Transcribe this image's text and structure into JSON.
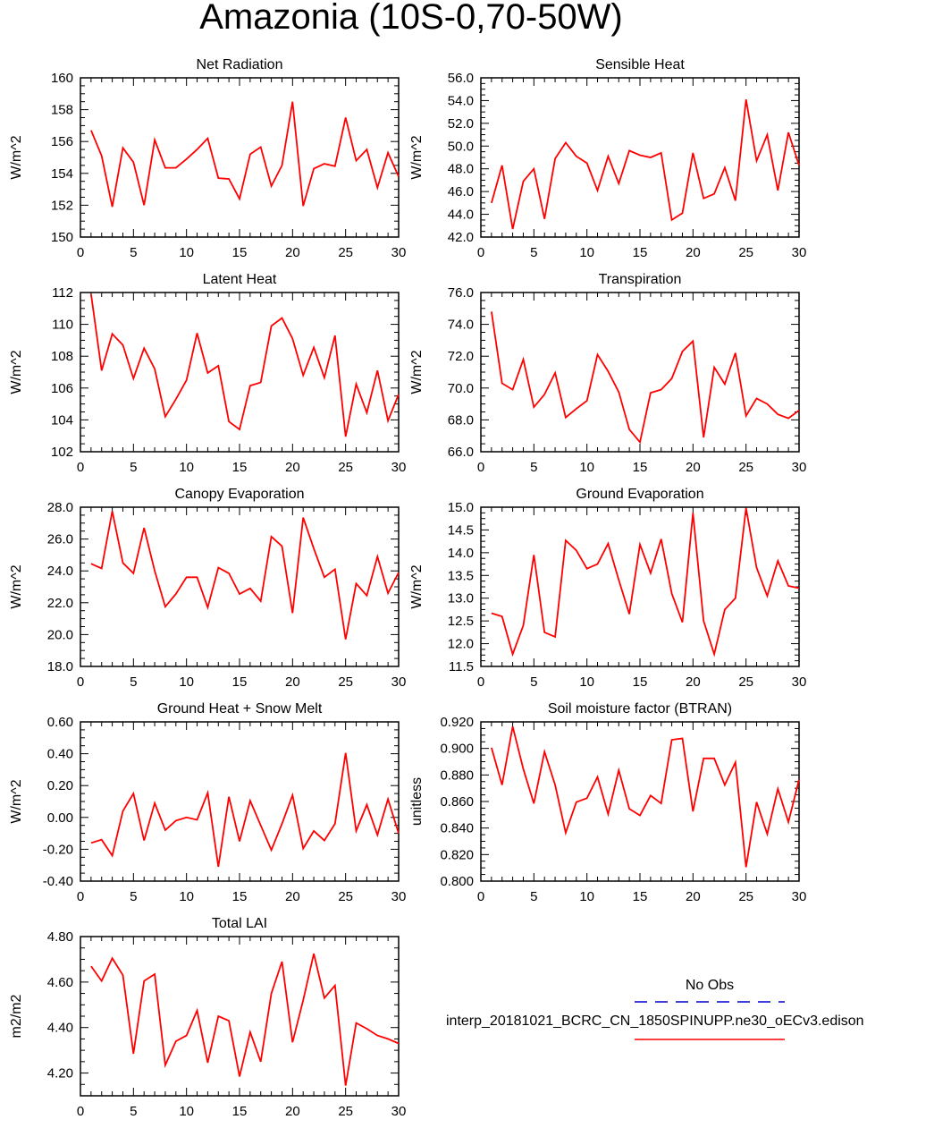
{
  "figure": {
    "title": "Amazonia (10S-0,70-50W)",
    "line_color": "#ff0000",
    "obs_color": "#0000cc"
  },
  "legend": {
    "obs_label": "No Obs",
    "model_label": "interp_20181021_BCRC_CN_1850SPINUPP.ne30_oECv3.edison"
  },
  "chart_data": [
    {
      "type": "line",
      "title": "Net Radiation",
      "ylabel": "W/m^2",
      "ylim": [
        150,
        160
      ],
      "yticks": [
        150,
        152,
        154,
        156,
        158,
        160
      ],
      "ytick_labels": [
        "150",
        "152",
        "154",
        "156",
        "158",
        "160"
      ],
      "xlim": [
        0,
        30
      ],
      "xticks": [
        0,
        5,
        10,
        15,
        20,
        25,
        30
      ],
      "x": [
        1,
        2,
        3,
        4,
        5,
        6,
        7,
        8,
        9,
        10,
        11,
        12,
        13,
        14,
        15,
        16,
        17,
        18,
        19,
        20,
        21,
        22,
        23,
        24,
        25,
        26,
        27,
        28,
        29,
        30
      ],
      "series": [
        {
          "name": "model",
          "values": [
            156.7,
            155.1,
            151.9,
            155.6,
            154.7,
            152.0,
            156.1,
            154.35,
            154.35,
            154.9,
            155.5,
            156.2,
            153.7,
            153.65,
            152.4,
            155.2,
            155.65,
            153.2,
            154.5,
            158.5,
            151.95,
            154.3,
            154.6,
            154.45,
            157.5,
            154.8,
            155.5,
            153.1,
            155.3,
            153.8
          ]
        }
      ]
    },
    {
      "type": "line",
      "title": "Sensible Heat",
      "ylabel": "W/m^2",
      "ylim": [
        42.0,
        56.0
      ],
      "yticks": [
        42,
        44,
        46,
        48,
        50,
        52,
        54,
        56
      ],
      "ytick_labels": [
        "42.0",
        "44.0",
        "46.0",
        "48.0",
        "50.0",
        "52.0",
        "54.0",
        "56.0"
      ],
      "xlim": [
        0,
        30
      ],
      "xticks": [
        0,
        5,
        10,
        15,
        20,
        25,
        30
      ],
      "x": [
        1,
        2,
        3,
        4,
        5,
        6,
        7,
        8,
        9,
        10,
        11,
        12,
        13,
        14,
        15,
        16,
        17,
        18,
        19,
        20,
        21,
        22,
        23,
        24,
        25,
        26,
        27,
        28,
        29,
        30
      ],
      "series": [
        {
          "name": "model",
          "values": [
            45.0,
            48.3,
            42.7,
            46.9,
            48.0,
            43.6,
            48.9,
            50.3,
            49.1,
            48.5,
            46.1,
            49.1,
            46.7,
            49.6,
            49.2,
            49.0,
            49.4,
            43.5,
            44.1,
            49.4,
            45.4,
            45.8,
            48.1,
            45.2,
            54.1,
            48.7,
            51.0,
            46.1,
            51.2,
            48.3
          ]
        }
      ]
    },
    {
      "type": "line",
      "title": "Latent Heat",
      "ylabel": "W/m^2",
      "ylim": [
        102,
        112
      ],
      "yticks": [
        102,
        104,
        106,
        108,
        110,
        112
      ],
      "ytick_labels": [
        "102",
        "104",
        "106",
        "108",
        "110",
        "112"
      ],
      "xlim": [
        0,
        30
      ],
      "xticks": [
        0,
        5,
        10,
        15,
        20,
        25,
        30
      ],
      "x": [
        1,
        2,
        3,
        4,
        5,
        6,
        7,
        8,
        9,
        10,
        11,
        12,
        13,
        14,
        15,
        16,
        17,
        18,
        19,
        20,
        21,
        22,
        23,
        24,
        25,
        26,
        27,
        28,
        29,
        30
      ],
      "series": [
        {
          "name": "model",
          "values": [
            111.9,
            107.1,
            109.4,
            108.7,
            106.6,
            108.5,
            107.2,
            104.2,
            105.3,
            106.5,
            109.45,
            106.95,
            107.4,
            103.9,
            103.4,
            106.15,
            106.35,
            109.9,
            110.4,
            109.1,
            106.8,
            108.55,
            106.65,
            109.3,
            102.95,
            106.25,
            104.45,
            107.1,
            103.95,
            105.6
          ]
        }
      ]
    },
    {
      "type": "line",
      "title": "Transpiration",
      "ylabel": "W/m^2",
      "ylim": [
        66.0,
        76.0
      ],
      "yticks": [
        66,
        68,
        70,
        72,
        74,
        76
      ],
      "ytick_labels": [
        "66.0",
        "68.0",
        "70.0",
        "72.0",
        "74.0",
        "76.0"
      ],
      "xlim": [
        0,
        30
      ],
      "xticks": [
        0,
        5,
        10,
        15,
        20,
        25,
        30
      ],
      "x": [
        1,
        2,
        3,
        4,
        5,
        6,
        7,
        8,
        9,
        10,
        11,
        12,
        13,
        14,
        15,
        16,
        17,
        18,
        19,
        20,
        21,
        22,
        23,
        24,
        25,
        26,
        27,
        28,
        29,
        30
      ],
      "series": [
        {
          "name": "model",
          "values": [
            74.8,
            70.3,
            69.9,
            71.8,
            68.8,
            69.6,
            70.95,
            68.15,
            68.7,
            69.2,
            72.1,
            71.05,
            69.75,
            67.4,
            66.6,
            69.7,
            69.9,
            70.6,
            72.3,
            72.95,
            66.9,
            71.3,
            70.25,
            72.2,
            68.25,
            69.35,
            69.0,
            68.35,
            68.1,
            68.6
          ]
        }
      ]
    },
    {
      "type": "line",
      "title": "Canopy Evaporation",
      "ylabel": "W/m^2",
      "ylim": [
        18.0,
        28.0
      ],
      "yticks": [
        18,
        20,
        22,
        24,
        26,
        28
      ],
      "ytick_labels": [
        "18.0",
        "20.0",
        "22.0",
        "24.0",
        "26.0",
        "28.0"
      ],
      "xlim": [
        0,
        30
      ],
      "xticks": [
        0,
        5,
        10,
        15,
        20,
        25,
        30
      ],
      "x": [
        1,
        2,
        3,
        4,
        5,
        6,
        7,
        8,
        9,
        10,
        11,
        12,
        13,
        14,
        15,
        16,
        17,
        18,
        19,
        20,
        21,
        22,
        23,
        24,
        25,
        26,
        27,
        28,
        29,
        30
      ],
      "series": [
        {
          "name": "model",
          "values": [
            24.45,
            24.15,
            27.75,
            24.5,
            23.85,
            26.7,
            24.0,
            21.75,
            22.55,
            23.6,
            23.6,
            21.7,
            24.2,
            23.85,
            22.55,
            22.9,
            22.1,
            26.15,
            25.55,
            21.35,
            27.35,
            25.4,
            23.6,
            24.1,
            19.7,
            23.2,
            22.45,
            24.9,
            22.6,
            23.9
          ]
        }
      ]
    },
    {
      "type": "line",
      "title": "Ground Evaporation",
      "ylabel": "W/m^2",
      "ylim": [
        11.5,
        15.0
      ],
      "yticks": [
        11.5,
        12.0,
        12.5,
        13.0,
        13.5,
        14.0,
        14.5,
        15.0
      ],
      "ytick_labels": [
        "11.5",
        "12.0",
        "12.5",
        "13.0",
        "13.5",
        "14.0",
        "14.5",
        "15.0"
      ],
      "xlim": [
        0,
        30
      ],
      "xticks": [
        0,
        5,
        10,
        15,
        20,
        25,
        30
      ],
      "x": [
        1,
        2,
        3,
        4,
        5,
        6,
        7,
        8,
        9,
        10,
        11,
        12,
        13,
        14,
        15,
        16,
        17,
        18,
        19,
        20,
        21,
        22,
        23,
        24,
        25,
        26,
        27,
        28,
        29,
        30
      ],
      "series": [
        {
          "name": "model",
          "values": [
            12.67,
            12.6,
            11.77,
            12.4,
            13.95,
            12.25,
            12.15,
            14.27,
            14.05,
            13.65,
            13.75,
            14.2,
            13.4,
            12.65,
            14.18,
            13.55,
            14.3,
            13.1,
            12.47,
            14.87,
            12.5,
            11.77,
            12.75,
            13.0,
            14.98,
            13.67,
            13.05,
            13.82,
            13.27,
            13.22
          ]
        }
      ]
    },
    {
      "type": "line",
      "title": "Ground Heat + Snow Melt",
      "ylabel": "W/m^2",
      "ylim": [
        -0.4,
        0.6
      ],
      "yticks": [
        -0.4,
        -0.2,
        0.0,
        0.2,
        0.4,
        0.6
      ],
      "ytick_labels": [
        "-0.40",
        "-0.20",
        "0.00",
        "0.20",
        "0.40",
        "0.60"
      ],
      "xlim": [
        0,
        30
      ],
      "xticks": [
        0,
        5,
        10,
        15,
        20,
        25,
        30
      ],
      "x": [
        1,
        2,
        3,
        4,
        5,
        6,
        7,
        8,
        9,
        10,
        11,
        12,
        13,
        14,
        15,
        16,
        17,
        18,
        19,
        20,
        21,
        22,
        23,
        24,
        25,
        26,
        27,
        28,
        29,
        30
      ],
      "series": [
        {
          "name": "model",
          "values": [
            -0.16,
            -0.14,
            -0.24,
            0.04,
            0.15,
            -0.145,
            0.09,
            -0.08,
            -0.02,
            0.0,
            -0.015,
            0.155,
            -0.31,
            0.13,
            -0.15,
            0.105,
            -0.05,
            -0.205,
            -0.04,
            0.14,
            -0.195,
            -0.085,
            -0.145,
            -0.04,
            0.405,
            -0.085,
            0.08,
            -0.11,
            0.115,
            -0.1
          ]
        }
      ]
    },
    {
      "type": "line",
      "title": "Soil moisture factor (BTRAN)",
      "ylabel": "unitless",
      "ylim": [
        0.8,
        0.92
      ],
      "yticks": [
        0.8,
        0.82,
        0.84,
        0.86,
        0.88,
        0.9,
        0.92
      ],
      "ytick_labels": [
        "0.800",
        "0.820",
        "0.840",
        "0.860",
        "0.880",
        "0.900",
        "0.920"
      ],
      "xlim": [
        0,
        30
      ],
      "xticks": [
        0,
        5,
        10,
        15,
        20,
        25,
        30
      ],
      "x": [
        1,
        2,
        3,
        4,
        5,
        6,
        7,
        8,
        9,
        10,
        11,
        12,
        13,
        14,
        15,
        16,
        17,
        18,
        19,
        20,
        21,
        22,
        23,
        24,
        25,
        26,
        27,
        28,
        29,
        30
      ],
      "series": [
        {
          "name": "model",
          "values": [
            0.9005,
            0.8725,
            0.9165,
            0.8845,
            0.8585,
            0.8975,
            0.8725,
            0.8365,
            0.8595,
            0.8625,
            0.8785,
            0.8505,
            0.8835,
            0.8545,
            0.8495,
            0.8645,
            0.8585,
            0.9065,
            0.9075,
            0.8525,
            0.8925,
            0.8925,
            0.8725,
            0.8895,
            0.8105,
            0.8595,
            0.8355,
            0.8695,
            0.8445,
            0.8765
          ]
        }
      ]
    },
    {
      "type": "line",
      "title": "Total LAI",
      "ylabel": "m2/m2",
      "ylim": [
        4.1,
        4.8
      ],
      "yticks": [
        4.2,
        4.4,
        4.6,
        4.8
      ],
      "ytick_labels": [
        "4.20",
        "4.40",
        "4.60",
        "4.80"
      ],
      "xlim": [
        0,
        30
      ],
      "xticks": [
        0,
        5,
        10,
        15,
        20,
        25,
        30
      ],
      "x": [
        1,
        2,
        3,
        4,
        5,
        6,
        7,
        8,
        9,
        10,
        11,
        12,
        13,
        14,
        15,
        16,
        17,
        18,
        19,
        20,
        21,
        22,
        23,
        24,
        25,
        26,
        27,
        28,
        29,
        30
      ],
      "series": [
        {
          "name": "model",
          "values": [
            4.67,
            4.605,
            4.705,
            4.63,
            4.285,
            4.605,
            4.635,
            4.235,
            4.34,
            4.365,
            4.475,
            4.245,
            4.45,
            4.43,
            4.185,
            4.38,
            4.25,
            4.55,
            4.69,
            4.335,
            4.52,
            4.725,
            4.53,
            4.585,
            4.145,
            4.42,
            4.395,
            4.365,
            4.35,
            4.33
          ]
        }
      ]
    }
  ]
}
